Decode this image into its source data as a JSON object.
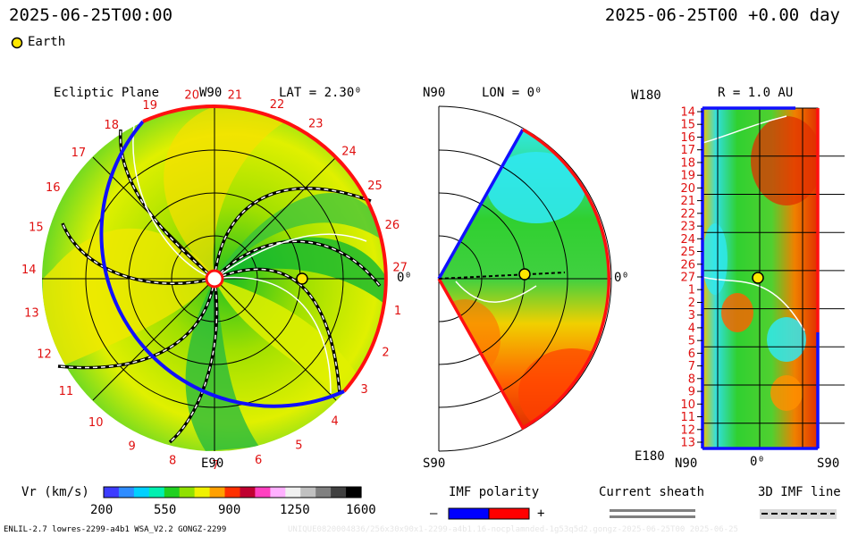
{
  "header": {
    "left_time": "2025-06-25T00:00",
    "right_time": "2025-06-25T00 +0.00 day"
  },
  "legend": {
    "earth_label": "Earth"
  },
  "panel_ecliptic": {
    "title": "Ecliptic Plane",
    "top_label": "W90",
    "bottom_label": "E90",
    "right_label": "0⁰",
    "lat_label": "LAT = 2.30⁰",
    "rotation_labels": [
      "20",
      "21",
      "22",
      "23",
      "24",
      "25",
      "26",
      "27",
      "1",
      "2",
      "3",
      "4",
      "5",
      "6",
      "7",
      "8",
      "9",
      "10",
      "11",
      "12",
      "13",
      "14",
      "15",
      "16",
      "17",
      "18",
      "19"
    ]
  },
  "panel_meridional": {
    "top_label": "N90",
    "bottom_label": "S90",
    "lon_label": "LON = 0⁰",
    "right_label": "0⁰"
  },
  "panel_radial": {
    "top_left_label": "W180",
    "bottom_left_label": "E180",
    "r_label": "R = 1.0 AU",
    "bottom_labels": [
      "N90",
      "0⁰",
      "S90"
    ],
    "rows": [
      "14",
      "15",
      "16",
      "17",
      "18",
      "19",
      "20",
      "21",
      "22",
      "23",
      "24",
      "25",
      "26",
      "27",
      "1",
      "2",
      "3",
      "4",
      "5",
      "6",
      "7",
      "8",
      "9",
      "10",
      "11",
      "12",
      "13"
    ]
  },
  "colorbar": {
    "label": "Vr (km/s)",
    "ticks": [
      "200",
      "550",
      "900",
      "1250",
      "1600"
    ],
    "colors": [
      "#3c3cff",
      "#2e8cff",
      "#00d0ff",
      "#00f0b0",
      "#20d020",
      "#90e000",
      "#f0f000",
      "#ffa000",
      "#ff3000",
      "#c00030",
      "#ff40c0",
      "#ffb0ff",
      "#f0f0f0",
      "#c0c0c0",
      "#808080",
      "#404040",
      "#000000"
    ]
  },
  "imf_polarity": {
    "label": "IMF polarity",
    "minus": "–",
    "plus": "+",
    "neg_color": "#0000ff",
    "pos_color": "#ff0000"
  },
  "current_sheath": {
    "label": "Current sheath"
  },
  "imf_line": {
    "label": "3D IMF line"
  },
  "footer": {
    "left": "ENLIL-2.7 lowres-2299-a4b1 WSA_V2.2 GONGZ-2299",
    "right": "UNIQUE0820004836/256x30x90x1-2299-a4b1.16-nocplamnded-1g53q5d2.gongz-2025-06-25T00   2025-06-25"
  }
}
